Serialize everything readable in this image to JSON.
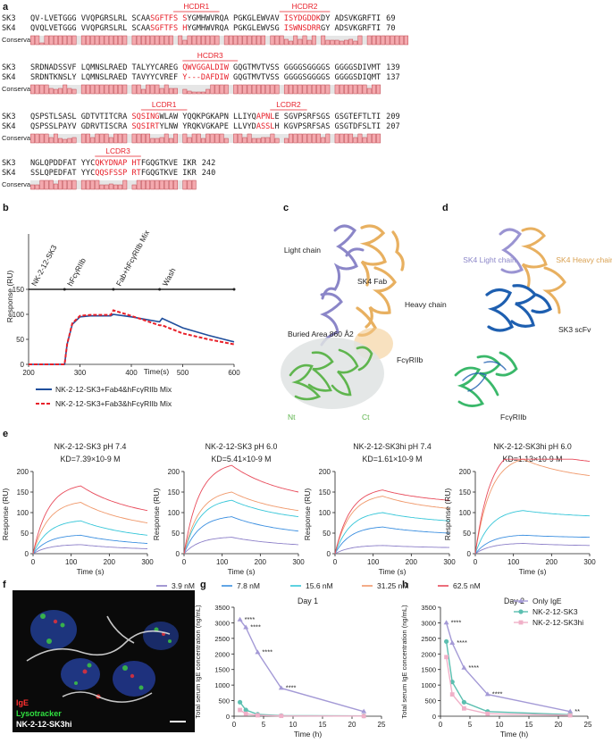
{
  "panels": {
    "a": "a",
    "b": "b",
    "c": "c",
    "d": "d",
    "e": "e",
    "f": "f",
    "g": "g",
    "h": "h"
  },
  "alignment": {
    "conservation_label": "Conservation",
    "blocks": [
      {
        "cdrs": [
          {
            "label": "HCDR1",
            "start": 31,
            "end": 41
          },
          {
            "label": "HCDR2",
            "start": 54,
            "end": 65
          }
        ],
        "rows": [
          {
            "name": "SK3",
            "seq": "QV-LVETGGG VVQPGRSLRL SCAASGFTFS SYGMHWVRQA PGKGLEWVAV ISYDGDDKDY ADSVKGRFTI",
            "num": "69"
          },
          {
            "name": "SK4",
            "seq": "QVQLVETGGG VVQPGRSLRL SCAASGFTFS HYGMHWVRQA PGKGLEWVSG ISWNSDRRGY ADSVKGRFTI",
            "num": "70"
          }
        ],
        "red_ranges": [
          [
            26,
            33
          ],
          [
            55,
            62
          ]
        ],
        "conservation": [
          10,
          10,
          2,
          10,
          10,
          10,
          10,
          10,
          10,
          10,
          0,
          10,
          10,
          10,
          10,
          10,
          10,
          10,
          10,
          10,
          10,
          0,
          10,
          10,
          10,
          10,
          10,
          10,
          10,
          10,
          10,
          0,
          10,
          5,
          10,
          10,
          10,
          10,
          10,
          10,
          10,
          0,
          10,
          10,
          10,
          10,
          10,
          10,
          10,
          10,
          10,
          0,
          10,
          10,
          10,
          6,
          4,
          10,
          6,
          10,
          5,
          10,
          0,
          10,
          5,
          5,
          5,
          4,
          5,
          6,
          4,
          10,
          0,
          10,
          10,
          10,
          10,
          10,
          10,
          10,
          10,
          10
        ]
      },
      {
        "cdrs": [
          {
            "label": "HCDR3",
            "start": 33,
            "end": 45
          }
        ],
        "rows": [
          {
            "name": "SK3",
            "seq": "SRDNADSSVF LQMNSLRAED TALYYCAREG QWVGGALDIW GQGTMVTVSS GGGGSGGGGS GGGGSDIVMT",
            "num": "139"
          },
          {
            "name": "SK4",
            "seq": "SRDNTKNSLY LQMNSLRAED TAVYYCVREF Y---DAFDIW GQGTMVTVSS GGGGSGGGGS GGGGSDIQMT",
            "num": "137"
          }
        ],
        "red_ranges": [
          [
            33,
            42
          ]
        ],
        "conservation": [
          10,
          10,
          10,
          10,
          6,
          5,
          6,
          10,
          6,
          5,
          0,
          10,
          10,
          10,
          10,
          10,
          10,
          10,
          10,
          10,
          10,
          0,
          10,
          10,
          5,
          10,
          10,
          10,
          6,
          10,
          6,
          6,
          0,
          5,
          3,
          2,
          2,
          2,
          5,
          10,
          10,
          10,
          10,
          0,
          10,
          10,
          10,
          10,
          10,
          10,
          10,
          10,
          10,
          10,
          0,
          10,
          10,
          10,
          10,
          10,
          10,
          10,
          10,
          10,
          10,
          0,
          10,
          10,
          10,
          10,
          10,
          10,
          10,
          6,
          10,
          10
        ]
      },
      {
        "cdrs": [
          {
            "label": "LCDR1",
            "start": 24,
            "end": 34
          },
          {
            "label": "LCDR2",
            "start": 52,
            "end": 60
          }
        ],
        "rows": [
          {
            "name": "SK3",
            "seq": "QSPSTLSASL GDTVTITCRA SQSINGWLAW YQQKPGKAPN LLIYQAPNLE SGVPSRFSGS GSGTEFTLTI",
            "num": "209"
          },
          {
            "name": "SK4",
            "seq": "QSPSSLPAYV GDRVTISCRA SQSIRTYLNW YRQKVGKAPE LLVYDASSLH KGVPSRFSAS GSGTDFSLTI",
            "num": "207"
          }
        ],
        "red_ranges": [
          [
            22,
            27
          ],
          [
            49,
            52
          ]
        ],
        "conservation": [
          10,
          10,
          10,
          10,
          6,
          10,
          5,
          4,
          5,
          6,
          0,
          10,
          10,
          6,
          10,
          10,
          10,
          6,
          10,
          10,
          10,
          0,
          10,
          10,
          10,
          10,
          5,
          5,
          6,
          10,
          5,
          10,
          0,
          10,
          6,
          10,
          10,
          5,
          10,
          10,
          10,
          10,
          5,
          0,
          10,
          10,
          6,
          10,
          5,
          5,
          6,
          6,
          10,
          5,
          0,
          5,
          10,
          10,
          10,
          10,
          10,
          10,
          10,
          6,
          10,
          0,
          10,
          10,
          10,
          10,
          6,
          10,
          6,
          10,
          10,
          10
        ]
      },
      {
        "cdrs": [
          {
            "label": "LCDR3",
            "start": 14,
            "end": 24
          }
        ],
        "rows": [
          {
            "name": "SK3",
            "seq": "NGLQPDDFAT YYCQKYDNAP HTFGQGTKVE IKR",
            "num": "242"
          },
          {
            "name": "SK4",
            "seq": "SSLQPEDFAT YYCQQSFSSP RTFGQGTKVE IKR",
            "num": "240"
          }
        ],
        "red_ranges": [
          [
            14,
            23
          ]
        ],
        "conservation": [
          5,
          5,
          10,
          10,
          10,
          6,
          10,
          10,
          10,
          10,
          0,
          10,
          10,
          10,
          10,
          5,
          5,
          6,
          5,
          5,
          10,
          0,
          5,
          10,
          10,
          10,
          10,
          10,
          10,
          10,
          10,
          10,
          0,
          10,
          10,
          10
        ]
      }
    ]
  },
  "panel_b": {
    "ylabel": "Response (RU)",
    "xlabel": "Time(s)",
    "phases": [
      "NK-2-12-SK3",
      "hFcγRIIb",
      "Fab+hFcγRIIb Mix",
      "Wash"
    ],
    "legend": [
      {
        "label": "NK-2-12-SK3+Fab4&hFcγRIIb Mix",
        "color": "#1f4e9c"
      },
      {
        "label": "NK-2-12-SK3+Fab3&hFcγRIIb Mix",
        "color": "#e8202a"
      }
    ],
    "phase_ticks": [
      "150"
    ]
  },
  "panel_c": {
    "labels": [
      "Light chain",
      "SK4 Fab",
      "Heavy chain",
      "Buried Area 860 Å2",
      "FcγRIIb",
      "Nt",
      "Ct"
    ]
  },
  "panel_d": {
    "labels": [
      "SK4 Light chain",
      "SK4 Heavy chain",
      "SK3 scFv",
      "FcγRIIb"
    ]
  },
  "panel_e": {
    "ylabel": "Response (RU)",
    "xlabel": "Time (s)",
    "titles": [
      "NK-2-12-SK3 pH 7.4",
      "NK-2-12-SK3 pH 6.0",
      "NK-2-12-SK3hi pH 7.4",
      "NK-2-12-SK3hi pH 6.0"
    ],
    "kd": [
      "K₅=7.39×10⁻⁹ M",
      "K₅=5.41×10⁻⁹ M",
      "K₅=1.61×10⁻⁹ M",
      "K₅=1.13×10⁻⁹ M"
    ],
    "kd_text": [
      "KD=7.39×10-9 M",
      "KD=5.41×10-9 M",
      "KD=1.61×10-9 M",
      "KD=1.13×10-9 M"
    ],
    "legend": [
      {
        "label": "3.9 nM",
        "color": "#8c7fc8"
      },
      {
        "label": "7.8 nM",
        "color": "#3b8fe0"
      },
      {
        "label": "15.6 nM",
        "color": "#35c6d8"
      },
      {
        "label": "31.25 nM",
        "color": "#f0986a"
      },
      {
        "label": "62.5 nM",
        "color": "#e84a5a"
      }
    ]
  },
  "panel_f": {
    "labels": [
      {
        "text": "IgE",
        "color": "#ff3030"
      },
      {
        "text": "Lysotracker",
        "color": "#30e040"
      },
      {
        "text": "NK-2-12-SK3hi",
        "color": "#ffffff"
      }
    ]
  },
  "panel_g": {
    "title": "Day 1",
    "ylabel": "Total serum IgE concentration (ng/mL)",
    "xlabel": "Time (h)",
    "stars": [
      "****",
      "****",
      "****",
      "****"
    ]
  },
  "panel_h": {
    "title": "Day 2",
    "ylabel": "Total serum IgE concentration (ng/mL)",
    "xlabel": "Time (h)",
    "stars": [
      "****",
      "****",
      "****",
      "****",
      "**"
    ],
    "legend": [
      {
        "label": "Only IgE",
        "color": "#a49ad6"
      },
      {
        "label": "NK-2-12-SK3",
        "color": "#5bbfb0"
      },
      {
        "label": "NK-2-12-SK3hi",
        "color": "#f0b0c8"
      }
    ]
  },
  "chart_data": [
    {
      "type": "line",
      "panel": "b",
      "xlabel": "Time(s)",
      "ylabel": "Response (RU)",
      "xlim": [
        200,
        600
      ],
      "ylim": [
        0,
        150
      ],
      "xticks": [
        200,
        300,
        400,
        500,
        600
      ],
      "yticks": [
        0,
        50,
        100,
        150
      ],
      "series": [
        {
          "name": "NK-2-12-SK3+Fab4&hFcγRIIb Mix",
          "x": [
            200,
            270,
            275,
            285,
            300,
            320,
            360,
            365,
            400,
            455,
            460,
            500,
            550,
            600
          ],
          "y": [
            0,
            0,
            40,
            80,
            95,
            97,
            97,
            100,
            95,
            85,
            92,
            73,
            58,
            45
          ]
        },
        {
          "name": "NK-2-12-SK3+Fab3&hFcγRIIb Mix",
          "x": [
            200,
            270,
            275,
            285,
            300,
            320,
            360,
            365,
            400,
            455,
            460,
            500,
            550,
            600
          ],
          "y": [
            0,
            0,
            40,
            82,
            97,
            99,
            99,
            108,
            97,
            78,
            78,
            62,
            50,
            40
          ]
        }
      ]
    },
    {
      "type": "line",
      "panel": "e",
      "xlabel": "Time (s)",
      "ylabel": "Response (RU)",
      "xticks": [
        0,
        100,
        200,
        300
      ],
      "yticks": [
        0,
        50,
        100,
        150,
        200
      ],
      "ylim": [
        0,
        200
      ],
      "concentrations_nM": [
        3.9,
        7.8,
        15.6,
        31.25,
        62.5
      ],
      "plots": [
        {
          "title": "NK-2-12-SK3 pH 7.4",
          "ymax": [
            22,
            45,
            80,
            125,
            165
          ],
          "yend": [
            12,
            25,
            45,
            75,
            105
          ]
        },
        {
          "title": "NK-2-12-SK3 pH 6.0",
          "ymax": [
            40,
            90,
            130,
            150,
            215
          ],
          "yend": [
            22,
            55,
            90,
            105,
            150
          ]
        },
        {
          "title": "NK-2-12-SK3hi pH 7.4",
          "ymax": [
            20,
            65,
            100,
            140,
            155
          ],
          "yend": [
            15,
            50,
            80,
            110,
            130
          ]
        },
        {
          "title": "NK-2-12-SK3hi pH 6.0",
          "ymax": [
            25,
            45,
            105,
            230,
            258
          ],
          "yend": [
            20,
            40,
            92,
            190,
            225
          ]
        }
      ]
    },
    {
      "type": "line",
      "panel": "g",
      "title": "Day 1",
      "xlabel": "Time (h)",
      "ylabel": "Total serum IgE concentration (ng/mL)",
      "xticks": [
        0,
        5,
        10,
        15,
        20,
        25
      ],
      "yticks": [
        0,
        500,
        1000,
        1500,
        2000,
        2500,
        3000,
        3500
      ],
      "ylim": [
        0,
        3500
      ],
      "series": [
        {
          "name": "Only IgE",
          "x": [
            1,
            2,
            4,
            8,
            22
          ],
          "y": [
            3100,
            2850,
            2050,
            900,
            150
          ]
        },
        {
          "name": "NK-2-12-SK3",
          "x": [
            1,
            2,
            4,
            8,
            22
          ],
          "y": [
            450,
            200,
            60,
            20,
            10
          ]
        },
        {
          "name": "NK-2-12-SK3hi",
          "x": [
            1,
            2,
            4,
            8,
            22
          ],
          "y": [
            200,
            80,
            30,
            10,
            5
          ]
        }
      ]
    },
    {
      "type": "line",
      "panel": "h",
      "title": "Day 2",
      "xlabel": "Time (h)",
      "ylabel": "Total serum IgE concentration (ng/mL)",
      "xticks": [
        0,
        5,
        10,
        15,
        20,
        25
      ],
      "yticks": [
        0,
        500,
        1000,
        1500,
        2000,
        2500,
        3000,
        3500
      ],
      "ylim": [
        0,
        3500
      ],
      "series": [
        {
          "name": "Only IgE",
          "x": [
            1,
            2,
            4,
            8,
            22
          ],
          "y": [
            3000,
            2350,
            1550,
            700,
            150
          ]
        },
        {
          "name": "NK-2-12-SK3",
          "x": [
            1,
            2,
            4,
            8,
            22
          ],
          "y": [
            2400,
            1100,
            450,
            150,
            50
          ]
        },
        {
          "name": "NK-2-12-SK3hi",
          "x": [
            1,
            2,
            4,
            8,
            22
          ],
          "y": [
            1900,
            700,
            250,
            80,
            30
          ]
        }
      ]
    }
  ]
}
